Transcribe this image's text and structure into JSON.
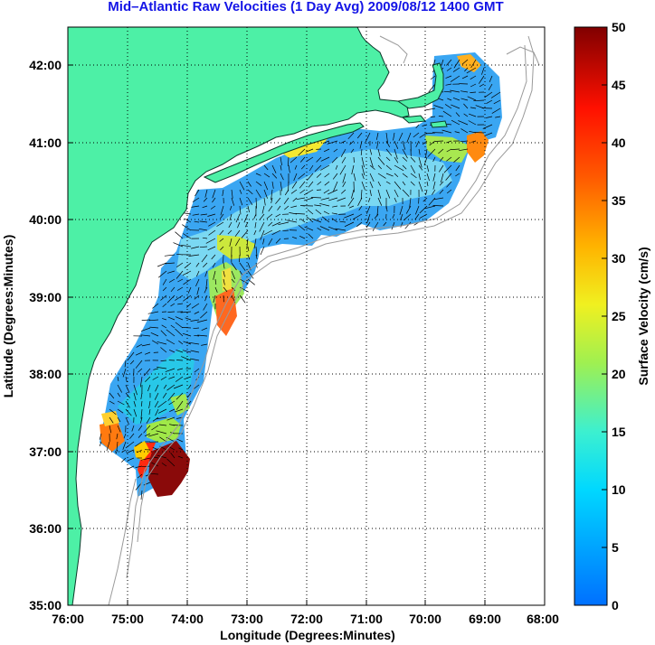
{
  "title": "Mid–Atlantic Raw Velocities (1 Day Avg) 2009/08/12 1400 GMT",
  "chart_data": {
    "type": "heatmap",
    "title": "Mid–Atlantic Raw Velocities (1 Day Avg) 2009/08/12 1400 GMT",
    "xlabel": "Longitude (Degrees:Minutes)",
    "ylabel": "Latitude (Degrees:Minutes)",
    "colorbar_label": "Surface Velocity (cm/s)",
    "xlim": [
      -76,
      -68
    ],
    "ylim": [
      35,
      42.5
    ],
    "x_ticks": [
      "76:00",
      "75:00",
      "74:00",
      "73:00",
      "72:00",
      "71:00",
      "70:00",
      "69:00",
      "68:00"
    ],
    "y_ticks": [
      "35:00",
      "36:00",
      "37:00",
      "38:00",
      "39:00",
      "40:00",
      "41:00",
      "42:00"
    ],
    "colorbar_range": [
      0,
      50
    ],
    "colorbar_ticks": [
      "0",
      "5",
      "10",
      "15",
      "20",
      "25",
      "30",
      "35",
      "40",
      "45",
      "50"
    ],
    "grid": true,
    "land_color": "#4df0a6",
    "colormap": "jet"
  }
}
